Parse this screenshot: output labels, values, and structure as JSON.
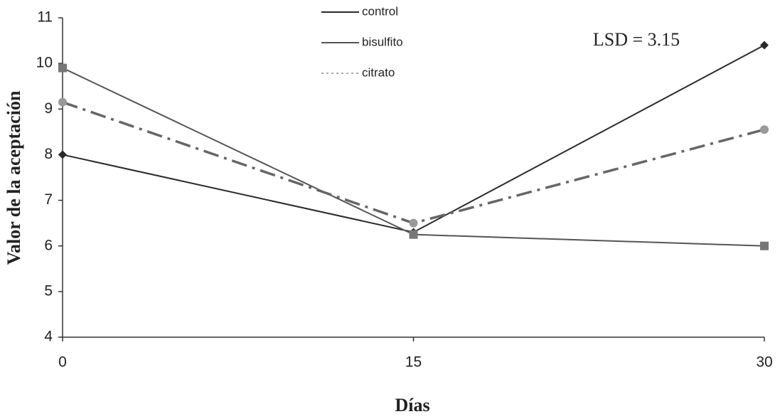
{
  "chart_data": {
    "type": "line",
    "x_label": "Días",
    "y_label": "Valor de la aceptación",
    "annotation": "LSD = 3.15",
    "x": [
      0,
      15,
      30
    ],
    "series": [
      {
        "name": "control",
        "color": "#2a2a2a",
        "marker": "diamond",
        "linestyle": "solid",
        "values": [
          8.0,
          6.3,
          10.4
        ]
      },
      {
        "name": "bisulfito",
        "color": "#555555",
        "marker": "square",
        "linestyle": "solid",
        "values": [
          9.9,
          6.25,
          6.0
        ]
      },
      {
        "name": "citrato",
        "color": "#666666",
        "marker": "circle",
        "linestyle": "dashdot",
        "values": [
          9.15,
          6.5,
          8.55
        ]
      }
    ],
    "xlim": [
      0,
      30
    ],
    "xticks": [
      0,
      15,
      30
    ],
    "ylim": [
      4,
      11
    ],
    "yticks": [
      4,
      5,
      6,
      7,
      8,
      9,
      10,
      11
    ]
  }
}
